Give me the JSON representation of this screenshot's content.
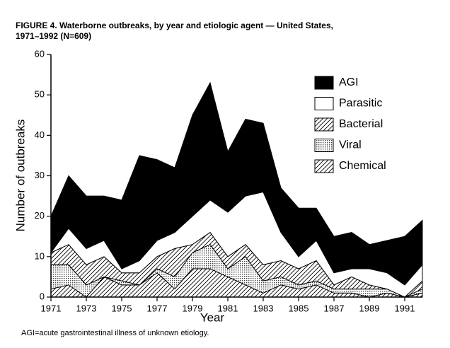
{
  "chart_data": {
    "type": "stacked-area",
    "title": [
      "FIGURE 4. Waterborne outbreaks, by year and etiologic agent — United States,",
      "1971–1992 (N=609)"
    ],
    "x_label": "Year",
    "y_label": "Number of outbreaks",
    "footnote": "AGI=acute gastrointestinal illness of unknown etiology.",
    "x": [
      1971,
      1972,
      1973,
      1974,
      1975,
      1976,
      1977,
      1978,
      1979,
      1980,
      1981,
      1982,
      1983,
      1984,
      1985,
      1986,
      1987,
      1988,
      1989,
      1990,
      1991,
      1992
    ],
    "xlim": [
      1971,
      1992
    ],
    "xticks": [
      1971,
      1973,
      1975,
      1977,
      1979,
      1981,
      1983,
      1985,
      1987,
      1989,
      1991
    ],
    "ylim": [
      0,
      60
    ],
    "yticks": [
      0,
      10,
      20,
      30,
      40,
      50,
      60
    ],
    "legend": "upper right",
    "series": [
      {
        "name": "Chemical",
        "color": "#ffffff",
        "pattern": "hatch",
        "values": [
          2,
          3,
          0,
          5,
          3,
          3,
          6,
          2,
          7,
          7,
          5,
          3,
          1,
          3,
          2,
          3,
          1,
          1,
          0,
          1,
          0,
          1
        ]
      },
      {
        "name": "Viral",
        "color": "#ffffff",
        "pattern": "dots",
        "values": [
          6,
          5,
          3,
          0,
          1,
          0,
          1,
          3,
          4,
          6,
          2,
          7,
          3,
          2,
          1,
          1,
          1,
          1,
          2,
          1,
          0,
          1
        ]
      },
      {
        "name": "Bacterial",
        "color": "#ffffff",
        "pattern": "hatch",
        "values": [
          3,
          5,
          5,
          5,
          2,
          3,
          3,
          7,
          2,
          3,
          3,
          3,
          4,
          4,
          4,
          5,
          1,
          3,
          1,
          0,
          0,
          2
        ]
      },
      {
        "name": "Parasitic",
        "color": "#ffffff",
        "pattern": "solid",
        "values": [
          0,
          4,
          4,
          4,
          1,
          3,
          4,
          4,
          7,
          8,
          11,
          12,
          18,
          7,
          3,
          5,
          3,
          2,
          4,
          4,
          3,
          4
        ]
      },
      {
        "name": "AGI",
        "color": "#000000",
        "pattern": "solid",
        "values": [
          9,
          13,
          13,
          11,
          17,
          26,
          20,
          16,
          25,
          29,
          15,
          19,
          17,
          11,
          12,
          8,
          9,
          9,
          6,
          8,
          12,
          11
        ]
      }
    ]
  }
}
